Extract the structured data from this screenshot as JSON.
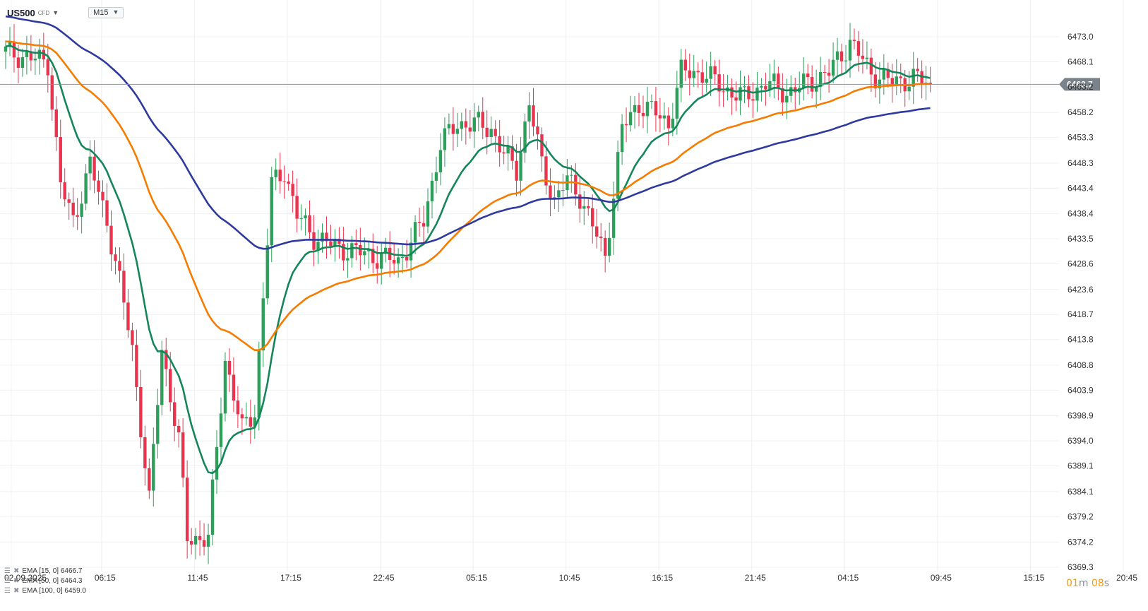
{
  "header": {
    "symbol": "US500",
    "symbol_type": "CFD",
    "timeframe": "M15"
  },
  "indicators": [
    {
      "label": "EMA [15, 0] 6466.7",
      "color": "#15865a"
    },
    {
      "label": "EMA [50, 0] 6464.3",
      "color": "#f57c00"
    },
    {
      "label": "EMA [100, 0] 6459.0",
      "color": "#2e3a9e"
    }
  ],
  "candle_timer": {
    "minutes": "01",
    "minutes_unit": "m",
    "seconds": "08",
    "seconds_unit": "s"
  },
  "chart_data": {
    "type": "candlestick",
    "y_axis": {
      "ylim": [
        6369.3,
        6477.0
      ],
      "ticks": [
        "6473.0",
        "6468.1",
        "6463.2",
        "6458.2",
        "6453.3",
        "6448.3",
        "6443.4",
        "6438.4",
        "6433.5",
        "6428.6",
        "6423.6",
        "6418.7",
        "6413.8",
        "6408.8",
        "6403.9",
        "6398.9",
        "6394.0",
        "6389.1",
        "6384.1",
        "6379.2",
        "6374.2",
        "6369.3"
      ],
      "position": "right",
      "current_price": 6463.7
    },
    "x_axis": {
      "ticks": [
        "02.09.2025",
        "06:15",
        "11:45",
        "17:15",
        "22:45",
        "05:15",
        "10:45",
        "16:15",
        "21:45",
        "04:15",
        "09:45",
        "15:15",
        "20:45"
      ],
      "tick_positions": [
        0,
        8,
        30,
        52,
        74,
        96,
        118,
        140,
        162,
        184,
        206,
        228,
        250
      ]
    },
    "colors": {
      "up": "#2e9e5b",
      "down": "#e8344e",
      "grid": "#eef0f3",
      "price_line": "#8c939b",
      "price_tag": "#7a828b"
    },
    "grid": true,
    "series": [
      {
        "name": "EMA [15, 0]",
        "color": "#15865a"
      },
      {
        "name": "EMA [50, 0]",
        "color": "#f57c00"
      },
      {
        "name": "EMA [100, 0]",
        "color": "#2e3a9e"
      }
    ],
    "close_points": [
      [
        0,
        6470
      ],
      [
        10,
        6468
      ],
      [
        13,
        6444
      ],
      [
        16,
        6437
      ],
      [
        20,
        6448
      ],
      [
        24,
        6437
      ],
      [
        27,
        6425
      ],
      [
        30,
        6412
      ],
      [
        34,
        6382
      ],
      [
        37,
        6412
      ],
      [
        41,
        6394
      ],
      [
        43,
        6375
      ],
      [
        48,
        6375
      ],
      [
        52,
        6410
      ],
      [
        56,
        6396
      ],
      [
        59,
        6400
      ],
      [
        63,
        6444
      ],
      [
        66,
        6447
      ],
      [
        69,
        6438
      ],
      [
        73,
        6434
      ],
      [
        78,
        6432
      ],
      [
        83,
        6431
      ],
      [
        88,
        6430
      ],
      [
        93,
        6429
      ],
      [
        96,
        6433
      ],
      [
        99,
        6437
      ],
      [
        103,
        6452
      ],
      [
        107,
        6456
      ],
      [
        111,
        6456
      ],
      [
        115,
        6455
      ],
      [
        118,
        6450
      ],
      [
        121,
        6447
      ],
      [
        124,
        6460
      ],
      [
        127,
        6448
      ],
      [
        130,
        6441
      ],
      [
        133,
        6445
      ],
      [
        136,
        6442
      ],
      [
        139,
        6436
      ],
      [
        142,
        6430
      ],
      [
        146,
        6455
      ],
      [
        150,
        6460
      ],
      [
        154,
        6458
      ],
      [
        157,
        6456
      ],
      [
        160,
        6466
      ],
      [
        165,
        6466
      ],
      [
        170,
        6463
      ],
      [
        175,
        6461
      ],
      [
        180,
        6464
      ],
      [
        185,
        6462
      ],
      [
        190,
        6464
      ],
      [
        195,
        6466
      ],
      [
        200,
        6472
      ],
      [
        205,
        6466
      ],
      [
        210,
        6464
      ],
      [
        215,
        6465
      ],
      [
        219,
        6463.7
      ]
    ]
  }
}
